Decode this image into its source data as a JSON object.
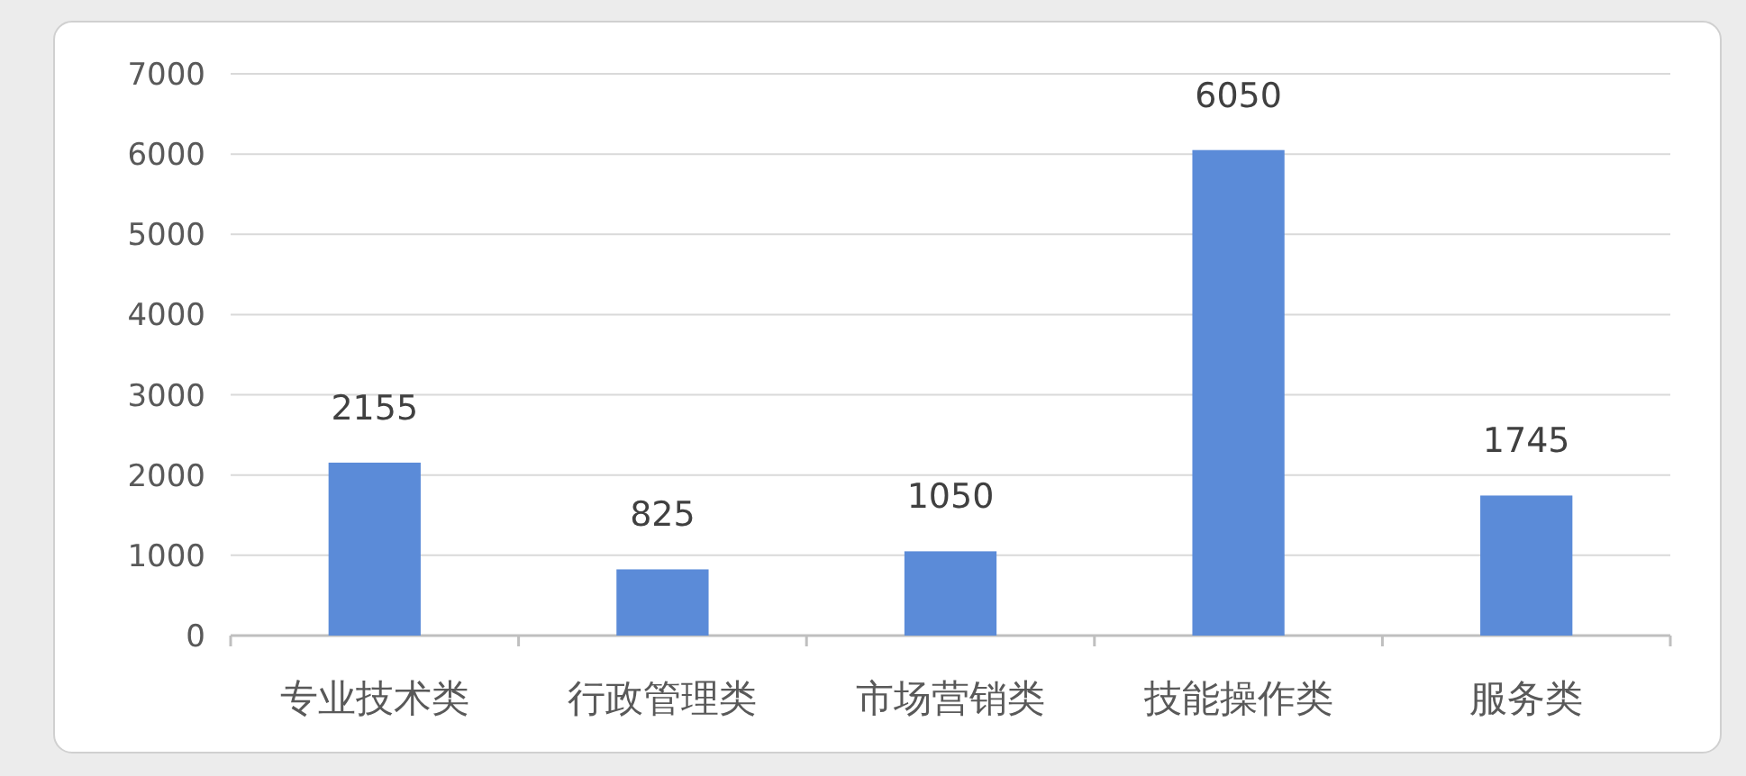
{
  "chart_data": {
    "type": "bar",
    "categories": [
      "专业技术类",
      "行政管理类",
      "市场营销类",
      "技能操作类",
      "服务类"
    ],
    "values": [
      2155,
      825,
      1050,
      6050,
      1745
    ],
    "color": "#5b8bd8",
    "ylim": [
      0,
      7000
    ],
    "yticks": [
      0,
      1000,
      2000,
      3000,
      4000,
      5000,
      6000,
      7000
    ],
    "grid": "y",
    "data_labels": true
  }
}
